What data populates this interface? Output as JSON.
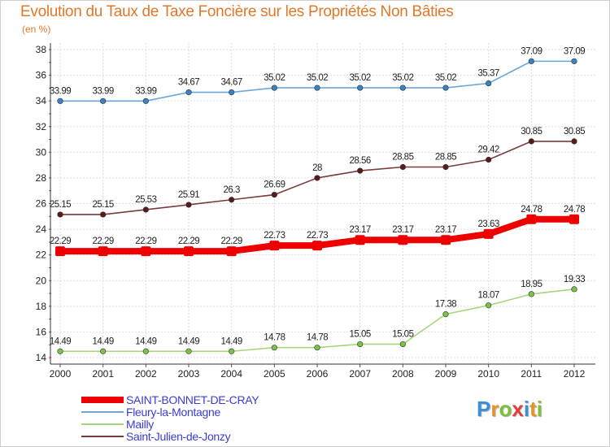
{
  "title": "Evolution du Taux de Taxe Foncière sur les Propriétés Non Bâties",
  "unit": "(en %)",
  "logo": {
    "letters": [
      "P",
      "r",
      "o",
      "x",
      "i",
      "t",
      "i"
    ],
    "colors": [
      "#3a8fd6",
      "#e8912a",
      "#7bbf3a",
      "#e23c3c",
      "#3a8fd6",
      "#e8912a",
      "#7bbf3a"
    ]
  },
  "chart_data": {
    "type": "line",
    "title": "Evolution du Taux de Taxe Foncière sur les Propriétés Non Bâties",
    "ylabel": "(en %)",
    "xlabel": "",
    "ylim": [
      14,
      38
    ],
    "yticks": [
      14,
      16,
      18,
      20,
      22,
      24,
      26,
      28,
      30,
      32,
      34,
      36,
      38
    ],
    "grid": true,
    "categories": [
      "2000",
      "2001",
      "2002",
      "2003",
      "2004",
      "2005",
      "2006",
      "2007",
      "2008",
      "2009",
      "2010",
      "2011",
      "2012"
    ],
    "series": [
      {
        "name": "SAINT-BONNET-DE-CRAY",
        "color": "#ee0000",
        "emphasis": true,
        "values": [
          22.29,
          22.29,
          22.29,
          22.29,
          22.29,
          22.73,
          22.73,
          23.17,
          23.17,
          23.17,
          23.63,
          24.78,
          24.78
        ],
        "labels": [
          "22.29",
          "22.29",
          "22.29",
          "22.29",
          "22.29",
          "22.73",
          "22.73",
          "23.17",
          "23.17",
          "23.17",
          "23.63",
          "24.78",
          "24.78"
        ]
      },
      {
        "name": "Fleury-la-Montagne",
        "color": "#6ca6d6",
        "marker": "#3a82c4",
        "values": [
          33.99,
          33.99,
          33.99,
          34.67,
          34.67,
          35.02,
          35.02,
          35.02,
          35.02,
          35.02,
          35.37,
          37.09,
          37.09
        ],
        "labels": [
          "33.99",
          "33.99",
          "33.99",
          "34.67",
          "34.67",
          "35.02",
          "35.02",
          "35.02",
          "35.02",
          "35.02",
          "35.37",
          "37.09",
          "37.09"
        ]
      },
      {
        "name": "Mailly",
        "color": "#a6d67c",
        "marker": "#7cc244",
        "values": [
          14.49,
          14.49,
          14.49,
          14.49,
          14.49,
          14.78,
          14.78,
          15.05,
          15.05,
          17.38,
          18.07,
          18.95,
          19.33
        ],
        "labels": [
          "14.49",
          "14.49",
          "14.49",
          "14.49",
          "14.49",
          "14.78",
          "14.78",
          "15.05",
          "15.05",
          "17.38",
          "18.07",
          "18.95",
          "19.33"
        ]
      },
      {
        "name": "Saint-Julien-de-Jonzy",
        "color": "#7a3a3a",
        "marker": "#5a1a1a",
        "values": [
          25.15,
          25.15,
          25.53,
          25.91,
          26.3,
          26.69,
          28,
          28.56,
          28.85,
          28.85,
          29.42,
          30.85,
          30.85
        ],
        "labels": [
          "25.15",
          "25.15",
          "25.53",
          "25.91",
          "26.3",
          "26.69",
          "28",
          "28.56",
          "28.85",
          "28.85",
          "29.42",
          "30.85",
          "30.85"
        ]
      }
    ],
    "legend": "bottom-left"
  }
}
